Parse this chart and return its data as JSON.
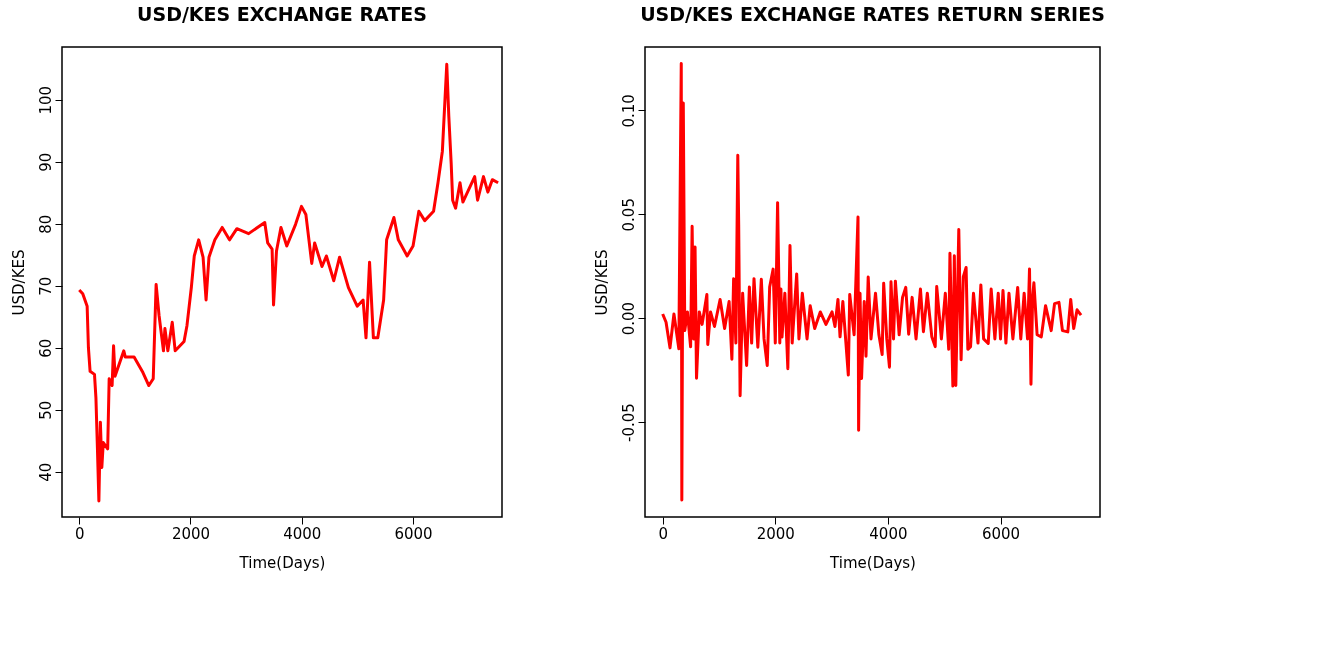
{
  "chart_data": [
    {
      "type": "line",
      "title": "USD/KES EXCHANGE RATES",
      "xlabel": "Time(Days)",
      "ylabel": "USD/KES",
      "xlim": [
        -310,
        7600
      ],
      "ylim": [
        32.7,
        108.5
      ],
      "xticks": [
        0,
        2000,
        4000,
        6000
      ],
      "yticks": [
        40,
        50,
        60,
        70,
        80,
        90,
        100
      ],
      "series": [
        {
          "color": "#ff0000",
          "x": [
            0,
            63,
            142,
            165,
            195,
            274,
            300,
            327,
            353,
            380,
            406,
            432,
            511,
            538,
            591,
            617,
            643,
            801,
            828,
            986,
            1145,
            1251,
            1330,
            1382,
            1435,
            1514,
            1540,
            1593,
            1672,
            1725,
            1884,
            1937,
            2016,
            2068,
            2147,
            2226,
            2280,
            2332,
            2438,
            2570,
            2701,
            2834,
            3045,
            3335,
            3388,
            3467,
            3493,
            3546,
            3626,
            3731,
            3889,
            3995,
            4074,
            4180,
            4232,
            4364,
            4443,
            4576,
            4680,
            4839,
            4997,
            5103,
            5155,
            5219,
            5288,
            5367,
            5472,
            5526,
            5657,
            5736,
            5895,
            6001,
            6105,
            6211,
            6370,
            6449,
            6528,
            6607,
            6644,
            6687,
            6713,
            6766,
            6845,
            6897,
            7109,
            7161,
            7267,
            7346,
            7426,
            7530
          ],
          "values": [
            69.3,
            68.7,
            66.7,
            60,
            56.2,
            55.7,
            51.9,
            43.7,
            35.3,
            48,
            40.7,
            44.7,
            43.7,
            55,
            53.9,
            60.3,
            55.4,
            59.5,
            58.5,
            58.5,
            56,
            53.9,
            55,
            70.2,
            65.2,
            59.5,
            63.1,
            59.5,
            64.1,
            59.5,
            61,
            63.6,
            69.8,
            74.8,
            77.4,
            74.6,
            67.7,
            74.6,
            77.4,
            79.4,
            77.4,
            79.2,
            78.4,
            80.2,
            76.9,
            75.9,
            66.9,
            75.6,
            79.4,
            76.4,
            79.9,
            82.8,
            81.5,
            73.6,
            76.9,
            73.1,
            74.8,
            70.8,
            74.6,
            69.7,
            66.7,
            67.7,
            61.6,
            73.8,
            61.6,
            61.6,
            67.7,
            77.4,
            81,
            77.4,
            74.8,
            76.4,
            82,
            80.5,
            82,
            86.6,
            91.7,
            105.7,
            97.3,
            89.6,
            83.8,
            82.5,
            86.6,
            83.5,
            87.6,
            83.8,
            87.6,
            85.1,
            87.1,
            86.6
          ]
        }
      ]
    },
    {
      "type": "line",
      "title": "USD/KES EXCHANGE RATES RETURN SERIES",
      "xlabel": "Time(Days)",
      "ylabel": "USD/KES",
      "xlim": [
        -314,
        7767
      ],
      "ylim": [
        -0.0957,
        0.1305
      ],
      "xticks": [
        0,
        2000,
        4000,
        6000
      ],
      "yticks": [
        {
          "value": -0.05,
          "label": "-0.05"
        },
        {
          "value": 0,
          "label": "0.00"
        },
        {
          "value": 0.05,
          "label": "0.05"
        },
        {
          "value": 0.1,
          "label": "0.10"
        }
      ],
      "series": [
        {
          "color": "#ff0000",
          "x": [
            0,
            60,
            130,
            200,
            287,
            330,
            340,
            366,
            392,
            440,
            496,
            523,
            550,
            575,
            601,
            650,
            700,
            785,
            801,
            850,
            920,
            1020,
            1100,
            1180,
            1229,
            1260,
            1300,
            1334,
            1350,
            1375,
            1420,
            1491,
            1540,
            1580,
            1622,
            1690,
            1752,
            1800,
            1857,
            1900,
            1962,
            2000,
            2041,
            2080,
            2100,
            2119,
            2170,
            2223,
            2261,
            2300,
            2380,
            2420,
            2480,
            2564,
            2620,
            2700,
            2799,
            2900,
            3008,
            3060,
            3113,
            3150,
            3200,
            3297,
            3322,
            3400,
            3469,
            3480,
            3505,
            3532,
            3580,
            3611,
            3650,
            3700,
            3780,
            3840,
            3898,
            3925,
            3980,
            4028,
            4055,
            4100,
            4133,
            4200,
            4260,
            4317,
            4369,
            4430,
            4500,
            4578,
            4631,
            4700,
            4780,
            4840,
            4867,
            4950,
            5020,
            5080,
            5102,
            5154,
            5180,
            5206,
            5259,
            5300,
            5340,
            5389,
            5420,
            5468,
            5520,
            5600,
            5651,
            5700,
            5782,
            5834,
            5900,
            5960,
            6000,
            6044,
            6096,
            6150,
            6220,
            6305,
            6360,
            6420,
            6480,
            6515,
            6541,
            6570,
            6593,
            6650,
            6724,
            6800,
            6900,
            6960,
            7038,
            7100,
            7195,
            7247,
            7300,
            7360,
            7430
          ],
          "values": [
            0.002,
            -0.002,
            -0.0143,
            0.002,
            -0.0147,
            0.1226,
            -0.0875,
            0.1035,
            -0.006,
            0.003,
            -0.0138,
            0.0442,
            -0.01,
            0.0342,
            -0.0289,
            0.003,
            -0.003,
            0.0114,
            -0.0127,
            0.003,
            -0.004,
            0.009,
            -0.005,
            0.008,
            -0.0198,
            0.019,
            -0.012,
            0.0784,
            0.045,
            -0.0373,
            0.012,
            -0.0228,
            0.015,
            -0.012,
            0.019,
            -0.014,
            0.0187,
            -0.01,
            -0.0228,
            0.015,
            0.0236,
            -0.012,
            0.0556,
            -0.012,
            0.014,
            -0.0091,
            0.012,
            -0.0243,
            0.035,
            -0.012,
            0.0213,
            -0.01,
            0.012,
            -0.01,
            0.006,
            -0.005,
            0.003,
            -0.003,
            0.003,
            -0.004,
            0.009,
            -0.009,
            0.008,
            -0.0274,
            0.0114,
            -0.008,
            0.0487,
            -0.054,
            0.012,
            -0.029,
            0.008,
            -0.0183,
            0.0198,
            -0.01,
            0.012,
            -0.008,
            -0.0175,
            0.0168,
            -0.01,
            -0.0236,
            0.0175,
            -0.01,
            0.0178,
            -0.008,
            0.01,
            0.0148,
            -0.0077,
            0.01,
            -0.01,
            0.014,
            -0.0065,
            0.012,
            -0.009,
            -0.0137,
            0.0152,
            -0.01,
            0.012,
            -0.015,
            0.0312,
            -0.0327,
            0.03,
            -0.0324,
            0.0427,
            -0.02,
            0.02,
            0.0244,
            -0.015,
            -0.0137,
            0.012,
            -0.012,
            0.016,
            -0.01,
            -0.0122,
            0.014,
            -0.01,
            0.012,
            -0.01,
            0.0133,
            -0.012,
            0.012,
            -0.01,
            0.0148,
            -0.01,
            0.012,
            -0.01,
            0.0236,
            -0.0318,
            0.01,
            0.017,
            -0.008,
            -0.009,
            0.006,
            -0.006,
            0.007,
            0.0076,
            -0.006,
            -0.0066,
            0.009,
            -0.005,
            0.004,
            0.0015
          ]
        }
      ]
    }
  ]
}
